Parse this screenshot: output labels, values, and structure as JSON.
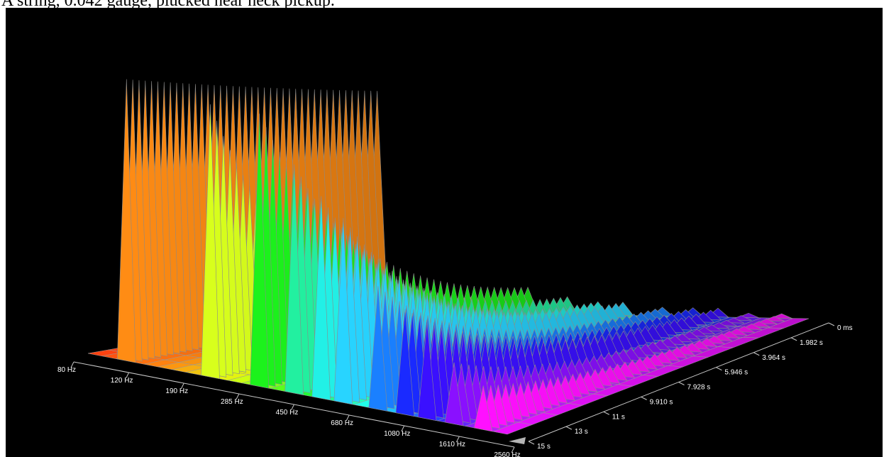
{
  "caption": "A string, 0.042 gauge, plucked near neck pickup.",
  "chart_data": {
    "type": "waterfall-3d",
    "title": "",
    "frequency_axis": {
      "ticks": [
        "80 Hz",
        "120 Hz",
        "190 Hz",
        "285 Hz",
        "450 Hz",
        "680 Hz",
        "1080 Hz",
        "1610 Hz",
        "2560 Hz"
      ]
    },
    "time_axis": {
      "ticks": [
        "0 ms",
        "1.982 s",
        "3.964 s",
        "5.946 s",
        "7.928 s",
        "9.910 s",
        "11 s",
        "13 s",
        "15 s"
      ]
    },
    "color_gradient": [
      "#ff3a10",
      "#ff8a10",
      "#e0ff10",
      "#20ff20",
      "#20ffff",
      "#2030ff",
      "#ff10ff"
    ],
    "peaks": [
      {
        "freq_hz": 110,
        "color": "#ff8c14",
        "start": 0.64,
        "end": 0.5
      },
      {
        "freq_hz": 220,
        "color": "#d8ff1c",
        "start": 0.62,
        "end": 0.04
      },
      {
        "freq_hz": 330,
        "color": "#1cf21c",
        "start": 0.62,
        "end": 0.06
      },
      {
        "freq_hz": 440,
        "color": "#22f0a0",
        "start": 0.52,
        "end": 0.04
      },
      {
        "freq_hz": 550,
        "color": "#22f0e6",
        "start": 0.46,
        "end": 0.03
      },
      {
        "freq_hz": 660,
        "color": "#28d4ff",
        "start": 0.42,
        "end": 0.03
      },
      {
        "freq_hz": 880,
        "color": "#1a80ff",
        "start": 0.28,
        "end": 0.02
      },
      {
        "freq_hz": 1100,
        "color": "#1a2aff",
        "start": 0.24,
        "end": 0.02
      },
      {
        "freq_hz": 1320,
        "color": "#3a10ff",
        "start": 0.22,
        "end": 0.02
      },
      {
        "freq_hz": 1650,
        "color": "#8a10ff",
        "start": 0.14,
        "end": 0.01
      },
      {
        "freq_hz": 2100,
        "color": "#ff10ff",
        "start": 0.1,
        "end": 0.01
      }
    ]
  }
}
